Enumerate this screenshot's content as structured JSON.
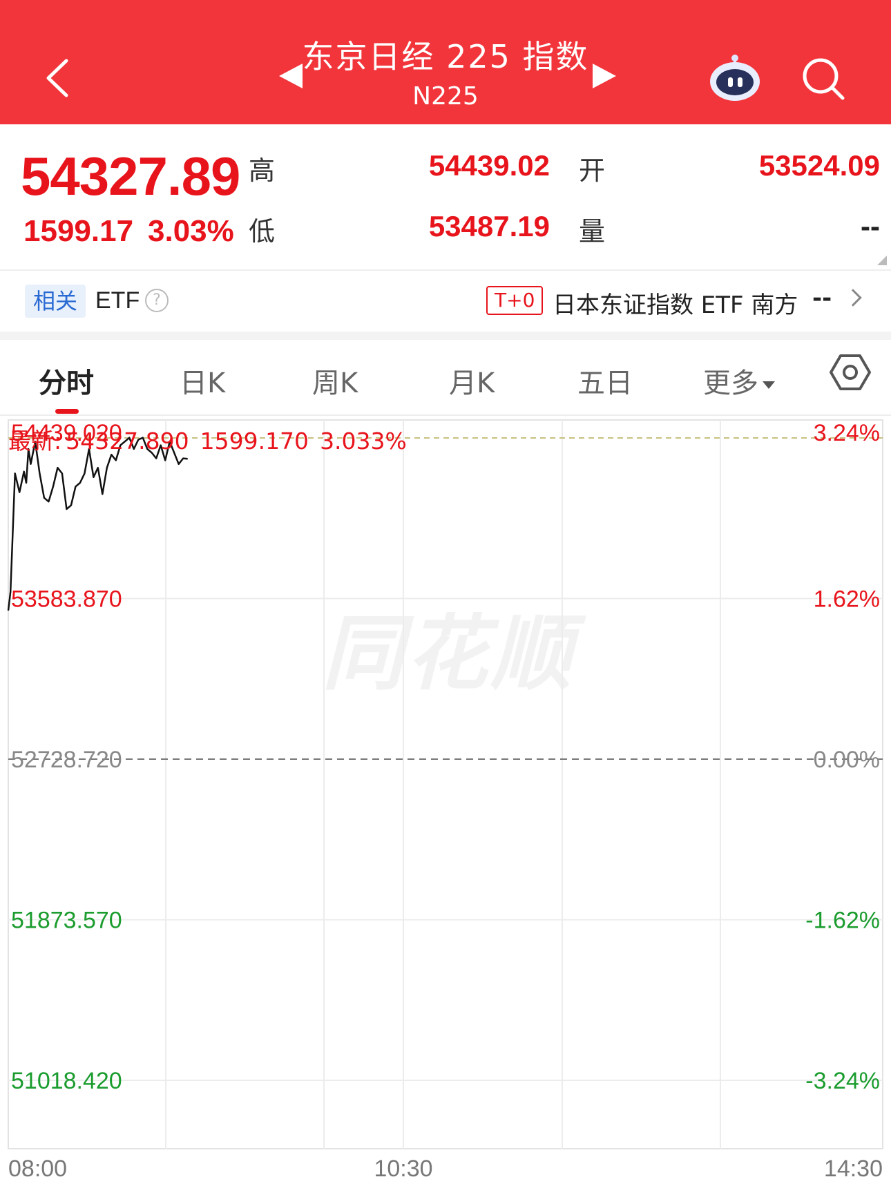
{
  "header": {
    "title": "东京日经 225 指数",
    "subtitle": "N225"
  },
  "quote": {
    "price": "54327.89",
    "change": "1599.17",
    "change_pct": "3.03%",
    "high_label": "高",
    "high_value": "54439.02",
    "low_label": "低",
    "low_value": "53487.19",
    "open_label": "开",
    "open_value": "53524.09",
    "volume_label": "量",
    "volume_value": "--"
  },
  "etf": {
    "related_tag": "相关",
    "label": "ETF",
    "help_symbol": "?",
    "badge": "T+0",
    "name": "日本东证指数 ETF 南方",
    "value": "--"
  },
  "tabs": [
    {
      "label": "分时",
      "active": true
    },
    {
      "label": "日K",
      "active": false
    },
    {
      "label": "周K",
      "active": false
    },
    {
      "label": "月K",
      "active": false
    },
    {
      "label": "五日",
      "active": false
    },
    {
      "label": "更多",
      "active": false
    }
  ],
  "latest": {
    "prefix": "最新:",
    "price": "54327.890",
    "change": "1599.170",
    "pct": "3.033%"
  },
  "watermark": "同花顺",
  "colors": {
    "header_bg": "#f2343b",
    "up": "#e8141c",
    "down": "#1b9c2e",
    "neutral": "#888888"
  },
  "chart_data": {
    "type": "line",
    "title": "",
    "xlabel": "",
    "ylabel": "",
    "x_ticks": [
      "08:00",
      "10:30",
      "14:30"
    ],
    "ylim": [
      51018.42,
      54439.02
    ],
    "prev_close": 52728.72,
    "high_ref": 54439.02,
    "y_ticks_left": [
      {
        "label": "54439.020",
        "value": 54439.02,
        "tone": "up"
      },
      {
        "label": "53583.870",
        "value": 53583.87,
        "tone": "up"
      },
      {
        "label": "52728.720",
        "value": 52728.72,
        "tone": "neutral"
      },
      {
        "label": "51873.570",
        "value": 51873.57,
        "tone": "down"
      },
      {
        "label": "51018.420",
        "value": 51018.42,
        "tone": "down"
      }
    ],
    "y_ticks_right": [
      {
        "label": "3.24%",
        "value": 54439.02,
        "tone": "up"
      },
      {
        "label": "1.62%",
        "value": 53583.87,
        "tone": "up"
      },
      {
        "label": "0.00%",
        "value": 52728.72,
        "tone": "neutral"
      },
      {
        "label": "-1.62%",
        "value": 51873.57,
        "tone": "down"
      },
      {
        "label": "-3.24%",
        "value": 51018.42,
        "tone": "down"
      }
    ],
    "x_range_minutes": [
      0,
      390
    ],
    "series": [
      {
        "minutes": [
          0,
          1,
          3,
          5,
          7,
          8,
          9,
          10,
          12,
          14,
          16,
          18,
          20,
          22,
          24,
          26,
          28,
          30,
          32,
          34,
          36,
          38,
          40,
          42,
          44,
          46,
          48,
          50,
          52,
          54,
          56,
          58,
          60,
          62,
          64,
          66,
          68,
          70,
          72,
          74,
          76,
          78,
          80
        ],
        "values": [
          53520,
          53620,
          54250,
          54150,
          54260,
          54200,
          54380,
          54300,
          54420,
          54250,
          54120,
          54100,
          54180,
          54280,
          54250,
          54060,
          54080,
          54180,
          54200,
          54250,
          54380,
          54230,
          54280,
          54140,
          54280,
          54350,
          54320,
          54400,
          54420,
          54440,
          54380,
          54430,
          54440,
          54380,
          54360,
          54330,
          54400,
          54320,
          54420,
          54360,
          54300,
          54330,
          54328
        ]
      }
    ]
  }
}
